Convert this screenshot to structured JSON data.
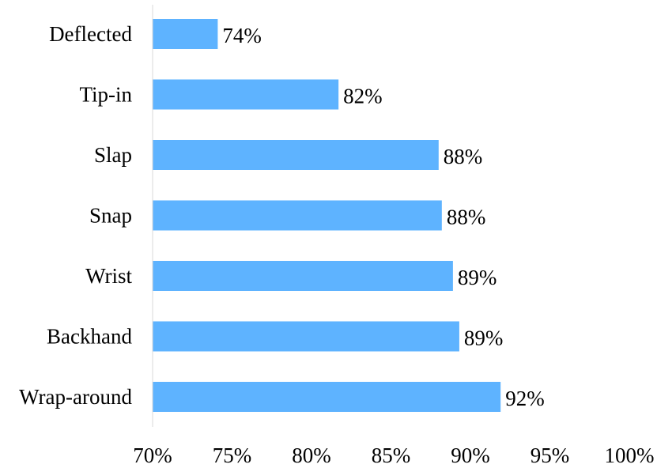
{
  "chart_data": {
    "type": "bar",
    "orientation": "horizontal",
    "categories": [
      "Deflected",
      "Tip-in",
      "Slap",
      "Snap",
      "Wrist",
      "Backhand",
      "Wrap-around"
    ],
    "values": [
      74.1,
      81.7,
      88.0,
      88.2,
      88.9,
      89.3,
      91.9
    ],
    "data_labels": [
      "74%",
      "82%",
      "88%",
      "88%",
      "89%",
      "89%",
      "92%"
    ],
    "xlim": [
      70,
      100
    ],
    "x_ticks": [
      70,
      75,
      80,
      85,
      90,
      95,
      100
    ],
    "x_tick_labels": [
      "70%",
      "75%",
      "80%",
      "85%",
      "90%",
      "95%",
      "100%"
    ],
    "title": "",
    "xlabel": "",
    "ylabel": "",
    "grid": false,
    "legend": "none",
    "bar_color": "#5EB3FF",
    "axis_color": "#D9D9D9"
  }
}
